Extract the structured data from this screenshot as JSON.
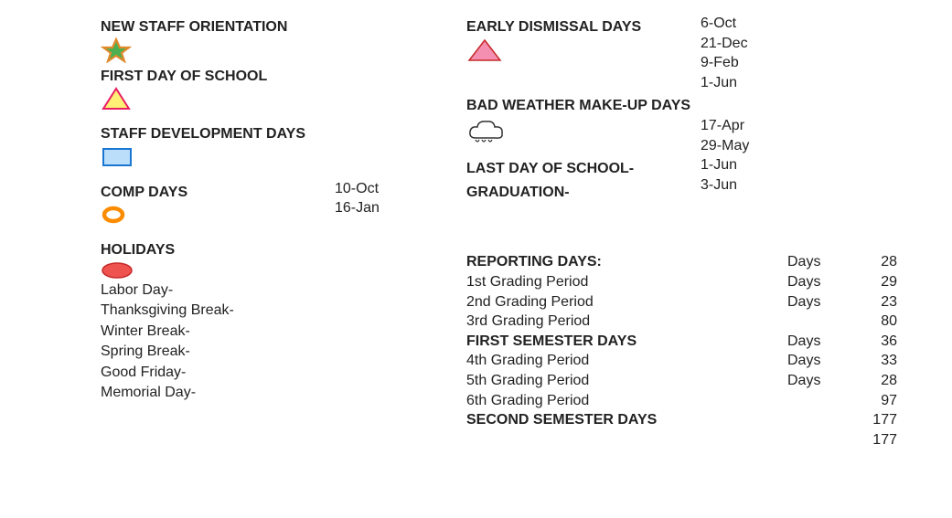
{
  "colors": {
    "star_fill": "#4caf50",
    "star_stroke": "#e08a2c",
    "tri_yellow_fill": "#fff176",
    "tri_yellow_stroke": "#e91e63",
    "rect_fill": "#bbdefb",
    "rect_stroke": "#1976d2",
    "donut_stroke": "#fb8c00",
    "ellipse_fill": "#ef5350",
    "ellipse_stroke": "#c62828",
    "tri_pink_fill": "#f48fb1",
    "tri_pink_stroke": "#c62828",
    "cloud_stroke": "#333333"
  },
  "left": {
    "new_staff": {
      "title": "NEW STAFF ORIENTATION"
    },
    "first_day": {
      "title": "FIRST DAY OF SCHOOL"
    },
    "staff_dev": {
      "title": "STAFF DEVELOPMENT DAYS"
    },
    "comp": {
      "title": "COMP DAYS",
      "dates": [
        "10-Oct",
        "16-Jan"
      ]
    },
    "holidays": {
      "title": "HOLIDAYS",
      "items": [
        "Labor Day-",
        "Thanksgiving Break-",
        "Winter Break-",
        "Spring Break-",
        "Good Friday-",
        "Memorial Day-"
      ]
    }
  },
  "right": {
    "early": {
      "title": "EARLY DISMISSAL DAYS",
      "dates": [
        "6-Oct",
        "21-Dec",
        "9-Feb",
        "1-Jun"
      ]
    },
    "bad_weather": {
      "title": "BAD WEATHER MAKE-UP DAYS",
      "dates": [
        "17-Apr",
        "29-May"
      ]
    },
    "last_day": {
      "line1": "LAST DAY OF SCHOOL-",
      "line2": "GRADUATION-",
      "dates": [
        "1-Jun",
        "3-Jun"
      ]
    },
    "reporting": {
      "days_word": "Days",
      "rows": [
        {
          "label": "REPORTING DAYS:",
          "bold": true,
          "days": true,
          "num": "28"
        },
        {
          "label": "1st Grading Period",
          "bold": false,
          "days": true,
          "num": "29"
        },
        {
          "label": "2nd Grading Period",
          "bold": false,
          "days": true,
          "num": "23"
        },
        {
          "label": "3rd Grading Period",
          "bold": false,
          "days": false,
          "num": "80"
        },
        {
          "label": "FIRST SEMESTER  DAYS",
          "bold": true,
          "days": true,
          "num": "36"
        },
        {
          "label": "4th Grading Period",
          "bold": false,
          "days": true,
          "num": "33"
        },
        {
          "label": "5th Grading Period",
          "bold": false,
          "days": true,
          "num": "28"
        },
        {
          "label": "6th Grading Period",
          "bold": false,
          "days": false,
          "num": "97"
        },
        {
          "label": "SECOND SEMESTER DAYS",
          "bold": true,
          "days": false,
          "num": "177"
        },
        {
          "label": "",
          "bold": false,
          "days": false,
          "num": "177"
        }
      ]
    }
  }
}
